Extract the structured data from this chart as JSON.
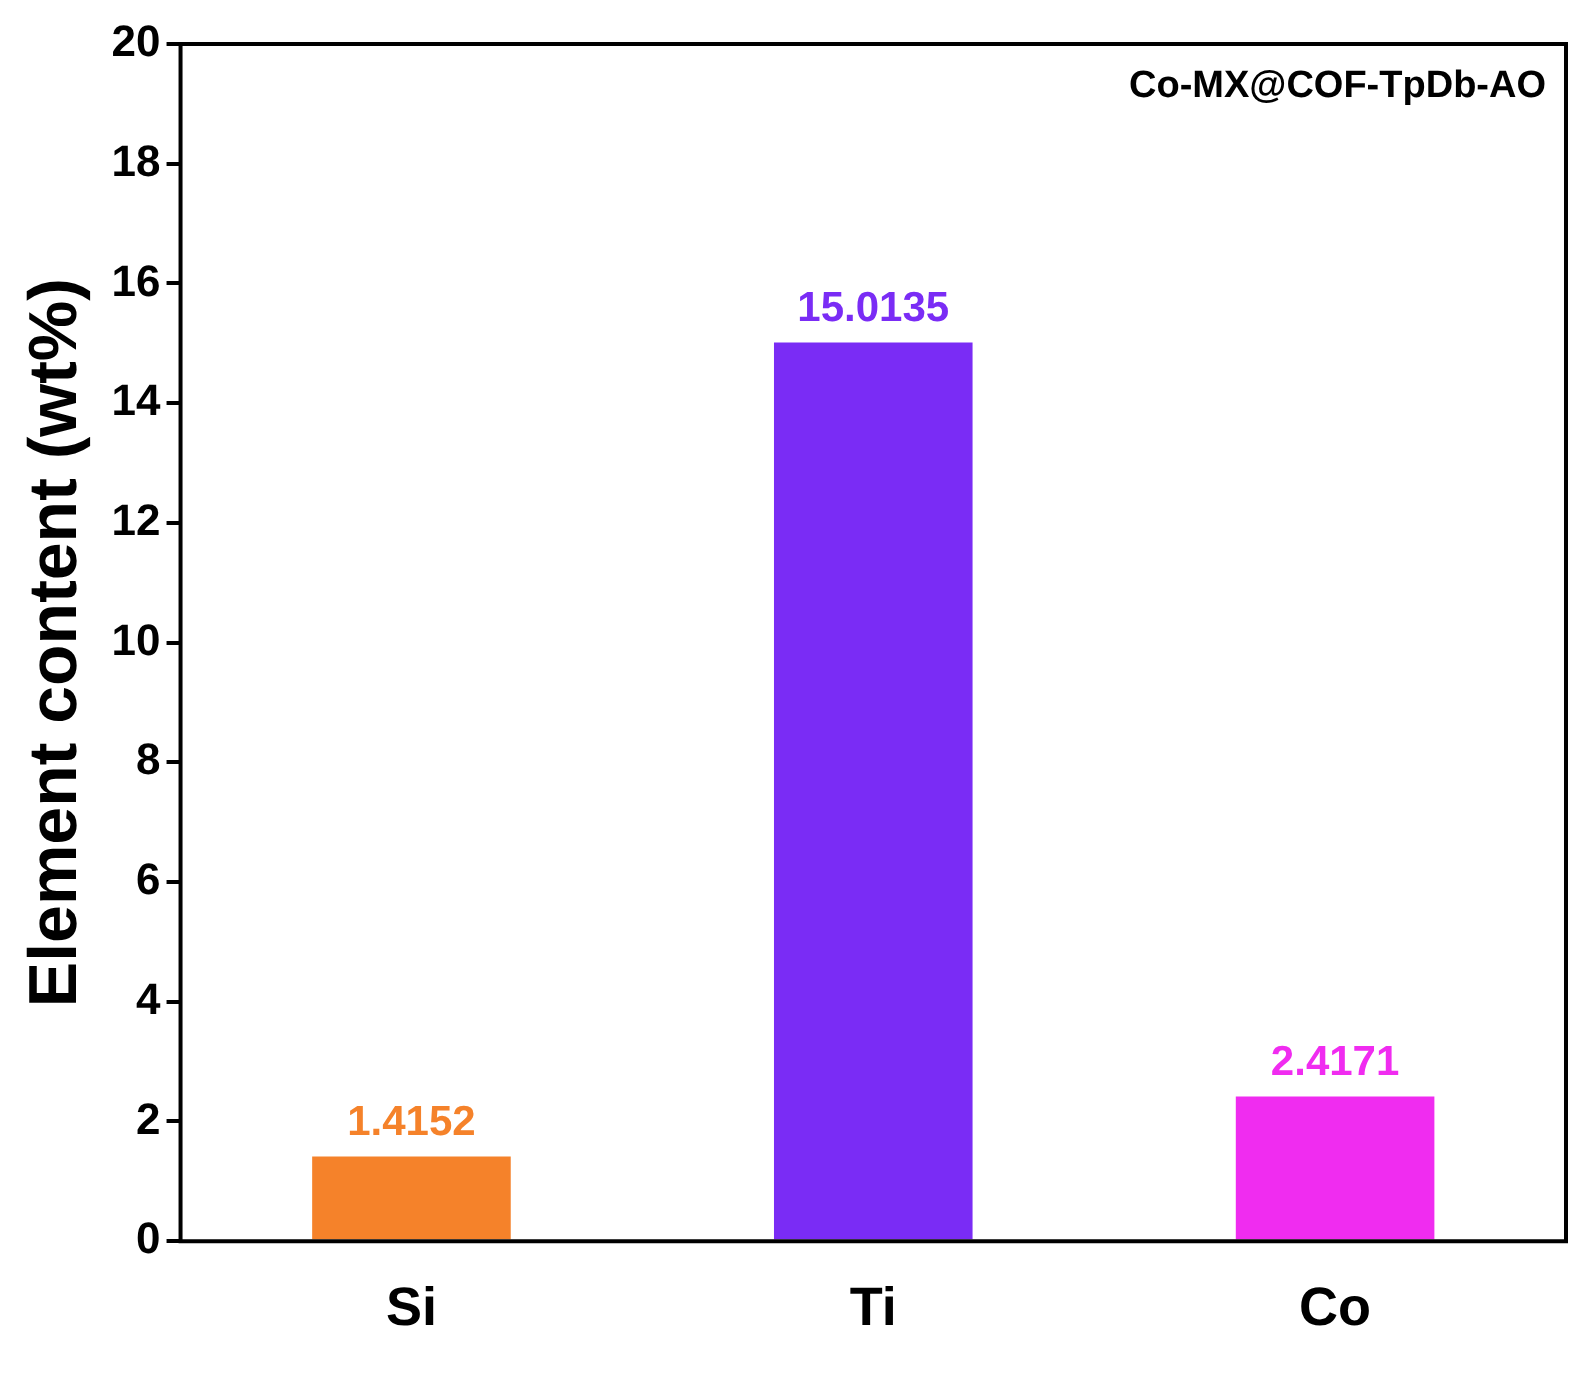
{
  "chart_data": {
    "type": "bar",
    "ylabel": "Element content (wt%)",
    "categories": [
      "Si",
      "Ti",
      "Co"
    ],
    "values": [
      1.4152,
      15.0135,
      2.4171
    ],
    "colors": [
      "#f5822a",
      "#7a2cf5",
      "#f02cf0"
    ],
    "ylim": [
      0,
      20
    ],
    "yticks": [
      0,
      2,
      4,
      6,
      8,
      10,
      12,
      14,
      16,
      18,
      20
    ],
    "grid": false,
    "legend": false,
    "data_labels": true,
    "annotations": [
      "Co-MX@COF-TpDb-AO"
    ]
  }
}
